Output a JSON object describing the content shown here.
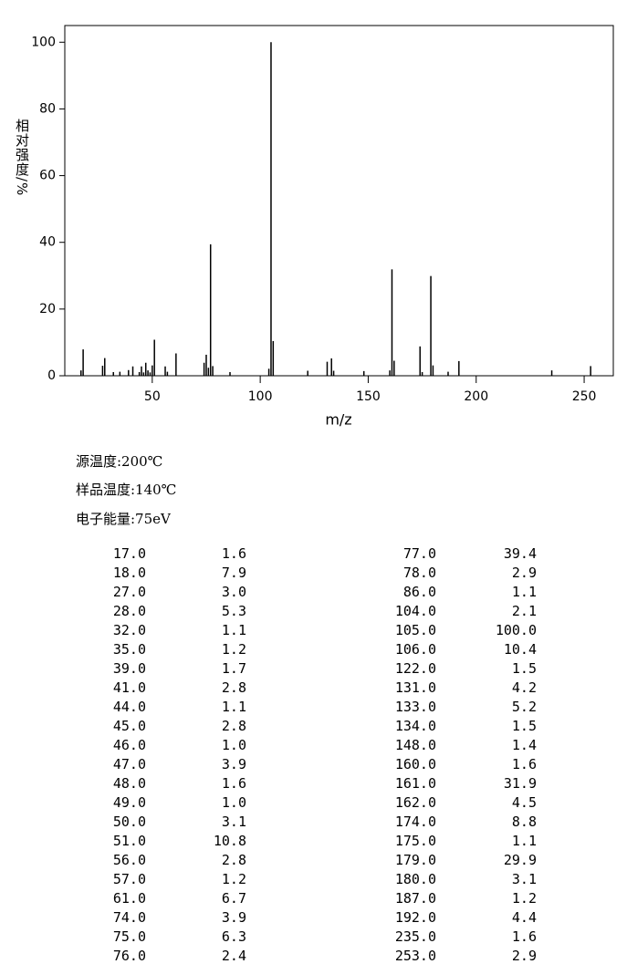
{
  "chart_data": {
    "type": "bar",
    "x_label": "m/z",
    "y_label": "相对强度/%",
    "x": [
      17,
      18,
      27,
      28,
      32,
      35,
      39,
      41,
      44,
      45,
      46,
      47,
      48,
      49,
      50,
      51,
      56,
      57,
      61,
      74,
      75,
      76,
      77,
      78,
      86,
      104,
      105,
      106,
      122,
      131,
      133,
      134,
      148,
      160,
      161,
      162,
      174,
      175,
      179,
      180,
      187,
      192,
      235,
      253
    ],
    "values": [
      1.6,
      7.9,
      3.0,
      5.3,
      1.1,
      1.2,
      1.7,
      2.8,
      1.1,
      2.8,
      1.0,
      3.9,
      1.6,
      1.0,
      3.1,
      10.8,
      2.8,
      1.2,
      6.7,
      3.9,
      6.3,
      2.4,
      39.4,
      2.9,
      1.1,
      2.1,
      100.0,
      10.4,
      1.5,
      4.2,
      5.2,
      1.5,
      1.4,
      1.6,
      31.9,
      4.5,
      8.8,
      1.1,
      29.9,
      3.1,
      1.2,
      4.4,
      1.6,
      2.9
    ],
    "color": "#000000",
    "xlim": [
      9.5,
      263.5
    ],
    "ylim": [
      0,
      105
    ],
    "xticks": [
      50,
      100,
      150,
      200,
      250
    ],
    "yticks": [
      0,
      20,
      40,
      60,
      80,
      100
    ]
  },
  "conditions": [
    "源温度:200℃",
    "样品温度:140℃",
    "电子能量:75eV"
  ],
  "peak_table": {
    "rows": [
      [
        "17.0",
        "1.6"
      ],
      [
        "18.0",
        "7.9"
      ],
      [
        "27.0",
        "3.0"
      ],
      [
        "28.0",
        "5.3"
      ],
      [
        "32.0",
        "1.1"
      ],
      [
        "35.0",
        "1.2"
      ],
      [
        "39.0",
        "1.7"
      ],
      [
        "41.0",
        "2.8"
      ],
      [
        "44.0",
        "1.1"
      ],
      [
        "45.0",
        "2.8"
      ],
      [
        "46.0",
        "1.0"
      ],
      [
        "47.0",
        "3.9"
      ],
      [
        "48.0",
        "1.6"
      ],
      [
        "49.0",
        "1.0"
      ],
      [
        "50.0",
        "3.1"
      ],
      [
        "51.0",
        "10.8"
      ],
      [
        "56.0",
        "2.8"
      ],
      [
        "57.0",
        "1.2"
      ],
      [
        "61.0",
        "6.7"
      ],
      [
        "74.0",
        "3.9"
      ],
      [
        "75.0",
        "6.3"
      ],
      [
        "76.0",
        "2.4"
      ],
      [
        "77.0",
        "39.4"
      ],
      [
        "78.0",
        "2.9"
      ],
      [
        "86.0",
        "1.1"
      ],
      [
        "104.0",
        "2.1"
      ],
      [
        "105.0",
        "100.0"
      ],
      [
        "106.0",
        "10.4"
      ],
      [
        "122.0",
        "1.5"
      ],
      [
        "131.0",
        "4.2"
      ],
      [
        "133.0",
        "5.2"
      ],
      [
        "134.0",
        "1.5"
      ],
      [
        "148.0",
        "1.4"
      ],
      [
        "160.0",
        "1.6"
      ],
      [
        "161.0",
        "31.9"
      ],
      [
        "162.0",
        "4.5"
      ],
      [
        "174.0",
        "8.8"
      ],
      [
        "175.0",
        "1.1"
      ],
      [
        "179.0",
        "29.9"
      ],
      [
        "180.0",
        "3.1"
      ],
      [
        "187.0",
        "1.2"
      ],
      [
        "192.0",
        "4.4"
      ],
      [
        "235.0",
        "1.6"
      ],
      [
        "253.0",
        "2.9"
      ]
    ]
  }
}
